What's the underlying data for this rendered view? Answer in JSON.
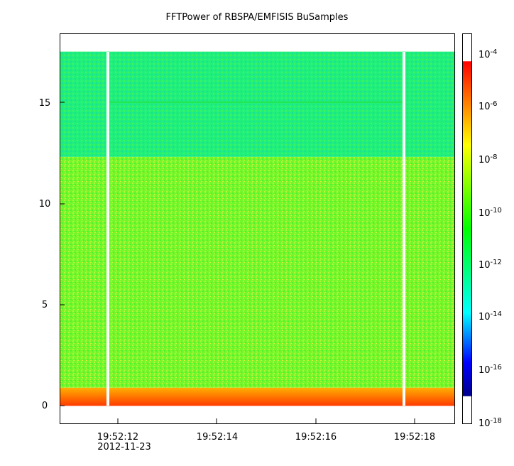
{
  "chart_data": {
    "type": "heatmap",
    "title": "FFTPower of RBSPA/EMFISIS  BuSamples",
    "xlabel": "",
    "ylabel": "",
    "x_ticks": [
      "19:52:12",
      "19:52:14",
      "19:52:16",
      "19:52:18"
    ],
    "x_date_label": "2012-11-23",
    "x_range_seconds": [
      10.83,
      18.85
    ],
    "ylim": [
      -0.9,
      18.4
    ],
    "y_ticks": [
      0,
      5,
      10,
      15
    ],
    "colorbar": {
      "scale": "log",
      "range": [
        1e-18,
        0.001
      ],
      "tick_bases": [
        "10",
        "10",
        "10",
        "10",
        "10",
        "10",
        "10",
        "10"
      ],
      "tick_exponents": [
        "-4",
        "-6",
        "-8",
        "-10",
        "-12",
        "-14",
        "-16",
        "-18"
      ],
      "colors": [
        "#8b0000",
        "#ff0000",
        "#ff8000",
        "#ffff00",
        "#00ff00",
        "#00ffff",
        "#0000ff",
        "#00008b"
      ]
    },
    "bands": [
      {
        "y_from": 0,
        "y_to": 0.9,
        "level": "1e-8 to 1e-6",
        "color": "#ff6a00"
      },
      {
        "y_from": 0.9,
        "y_to": 12.3,
        "level": "~1e-10",
        "color": "#7cff2a"
      },
      {
        "y_from": 12.3,
        "y_to": 17.5,
        "level": "~1e-12",
        "color": "#19f57a"
      }
    ],
    "line_feature": {
      "y": 15.0,
      "color": "#22e64e"
    },
    "gaps": [
      "19:52:11.8",
      "19:52:17.8"
    ]
  }
}
